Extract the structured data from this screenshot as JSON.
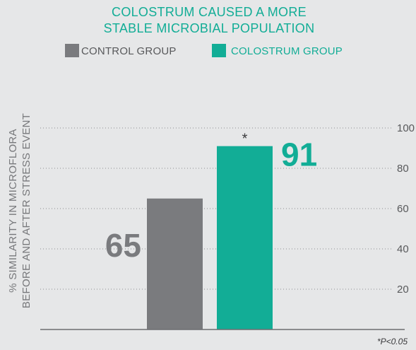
{
  "chart_data": {
    "type": "bar",
    "title": [
      "COLOSTRUM CAUSED A MORE",
      "STABLE MICROBIAL POPULATION"
    ],
    "ylabel": [
      "% SIMILARITY IN MICROFLORA",
      "BEFORE AND AFTER STRESS EVENT"
    ],
    "xlabel": "",
    "series": [
      {
        "name": "CONTROL GROUP",
        "value": 65,
        "color": "#7a7b7e",
        "value_label": "65",
        "annotation": ""
      },
      {
        "name": "COLOSTRUM GROUP",
        "value": 91,
        "color": "#12ad96",
        "value_label": "91",
        "annotation": "*"
      }
    ],
    "yticks": [
      "20",
      "40",
      "60",
      "80",
      "100"
    ],
    "ylim": [
      0,
      100
    ],
    "grid": true,
    "legend_position": "top",
    "footnote": "*P<0.05"
  }
}
